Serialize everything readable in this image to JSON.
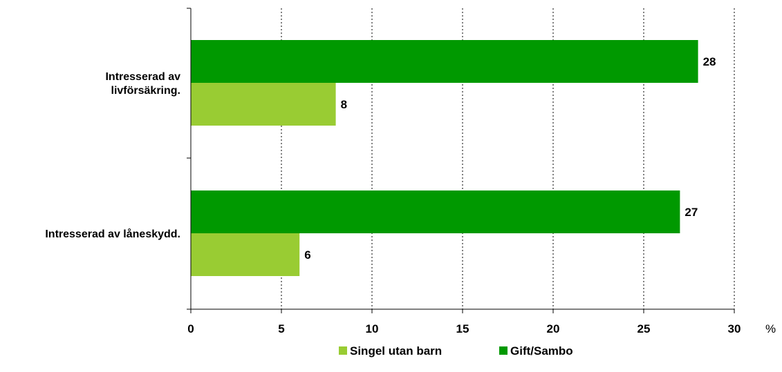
{
  "chart_data": {
    "type": "bar",
    "orientation": "horizontal",
    "categories": [
      "Intresserad av livförsäkring.",
      "Intresserad av låneskydd."
    ],
    "category_lines": [
      [
        "Intresserad av",
        "livförsäkring."
      ],
      [
        "Intresserad av låneskydd."
      ]
    ],
    "series": [
      {
        "name": "Gift/Sambo",
        "values": [
          28,
          27
        ],
        "color": "#009900"
      },
      {
        "name": "Singel utan barn",
        "values": [
          8,
          6
        ],
        "color": "#99CC33"
      }
    ],
    "legend_order": [
      "Singel utan barn",
      "Gift/Sambo"
    ],
    "legend_position": "bottom",
    "xlim": [
      0,
      30
    ],
    "xticks": [
      0,
      5,
      10,
      15,
      20,
      25,
      30
    ],
    "x_unit": "%",
    "grid": "vertical-dotted",
    "data_labels": true
  }
}
